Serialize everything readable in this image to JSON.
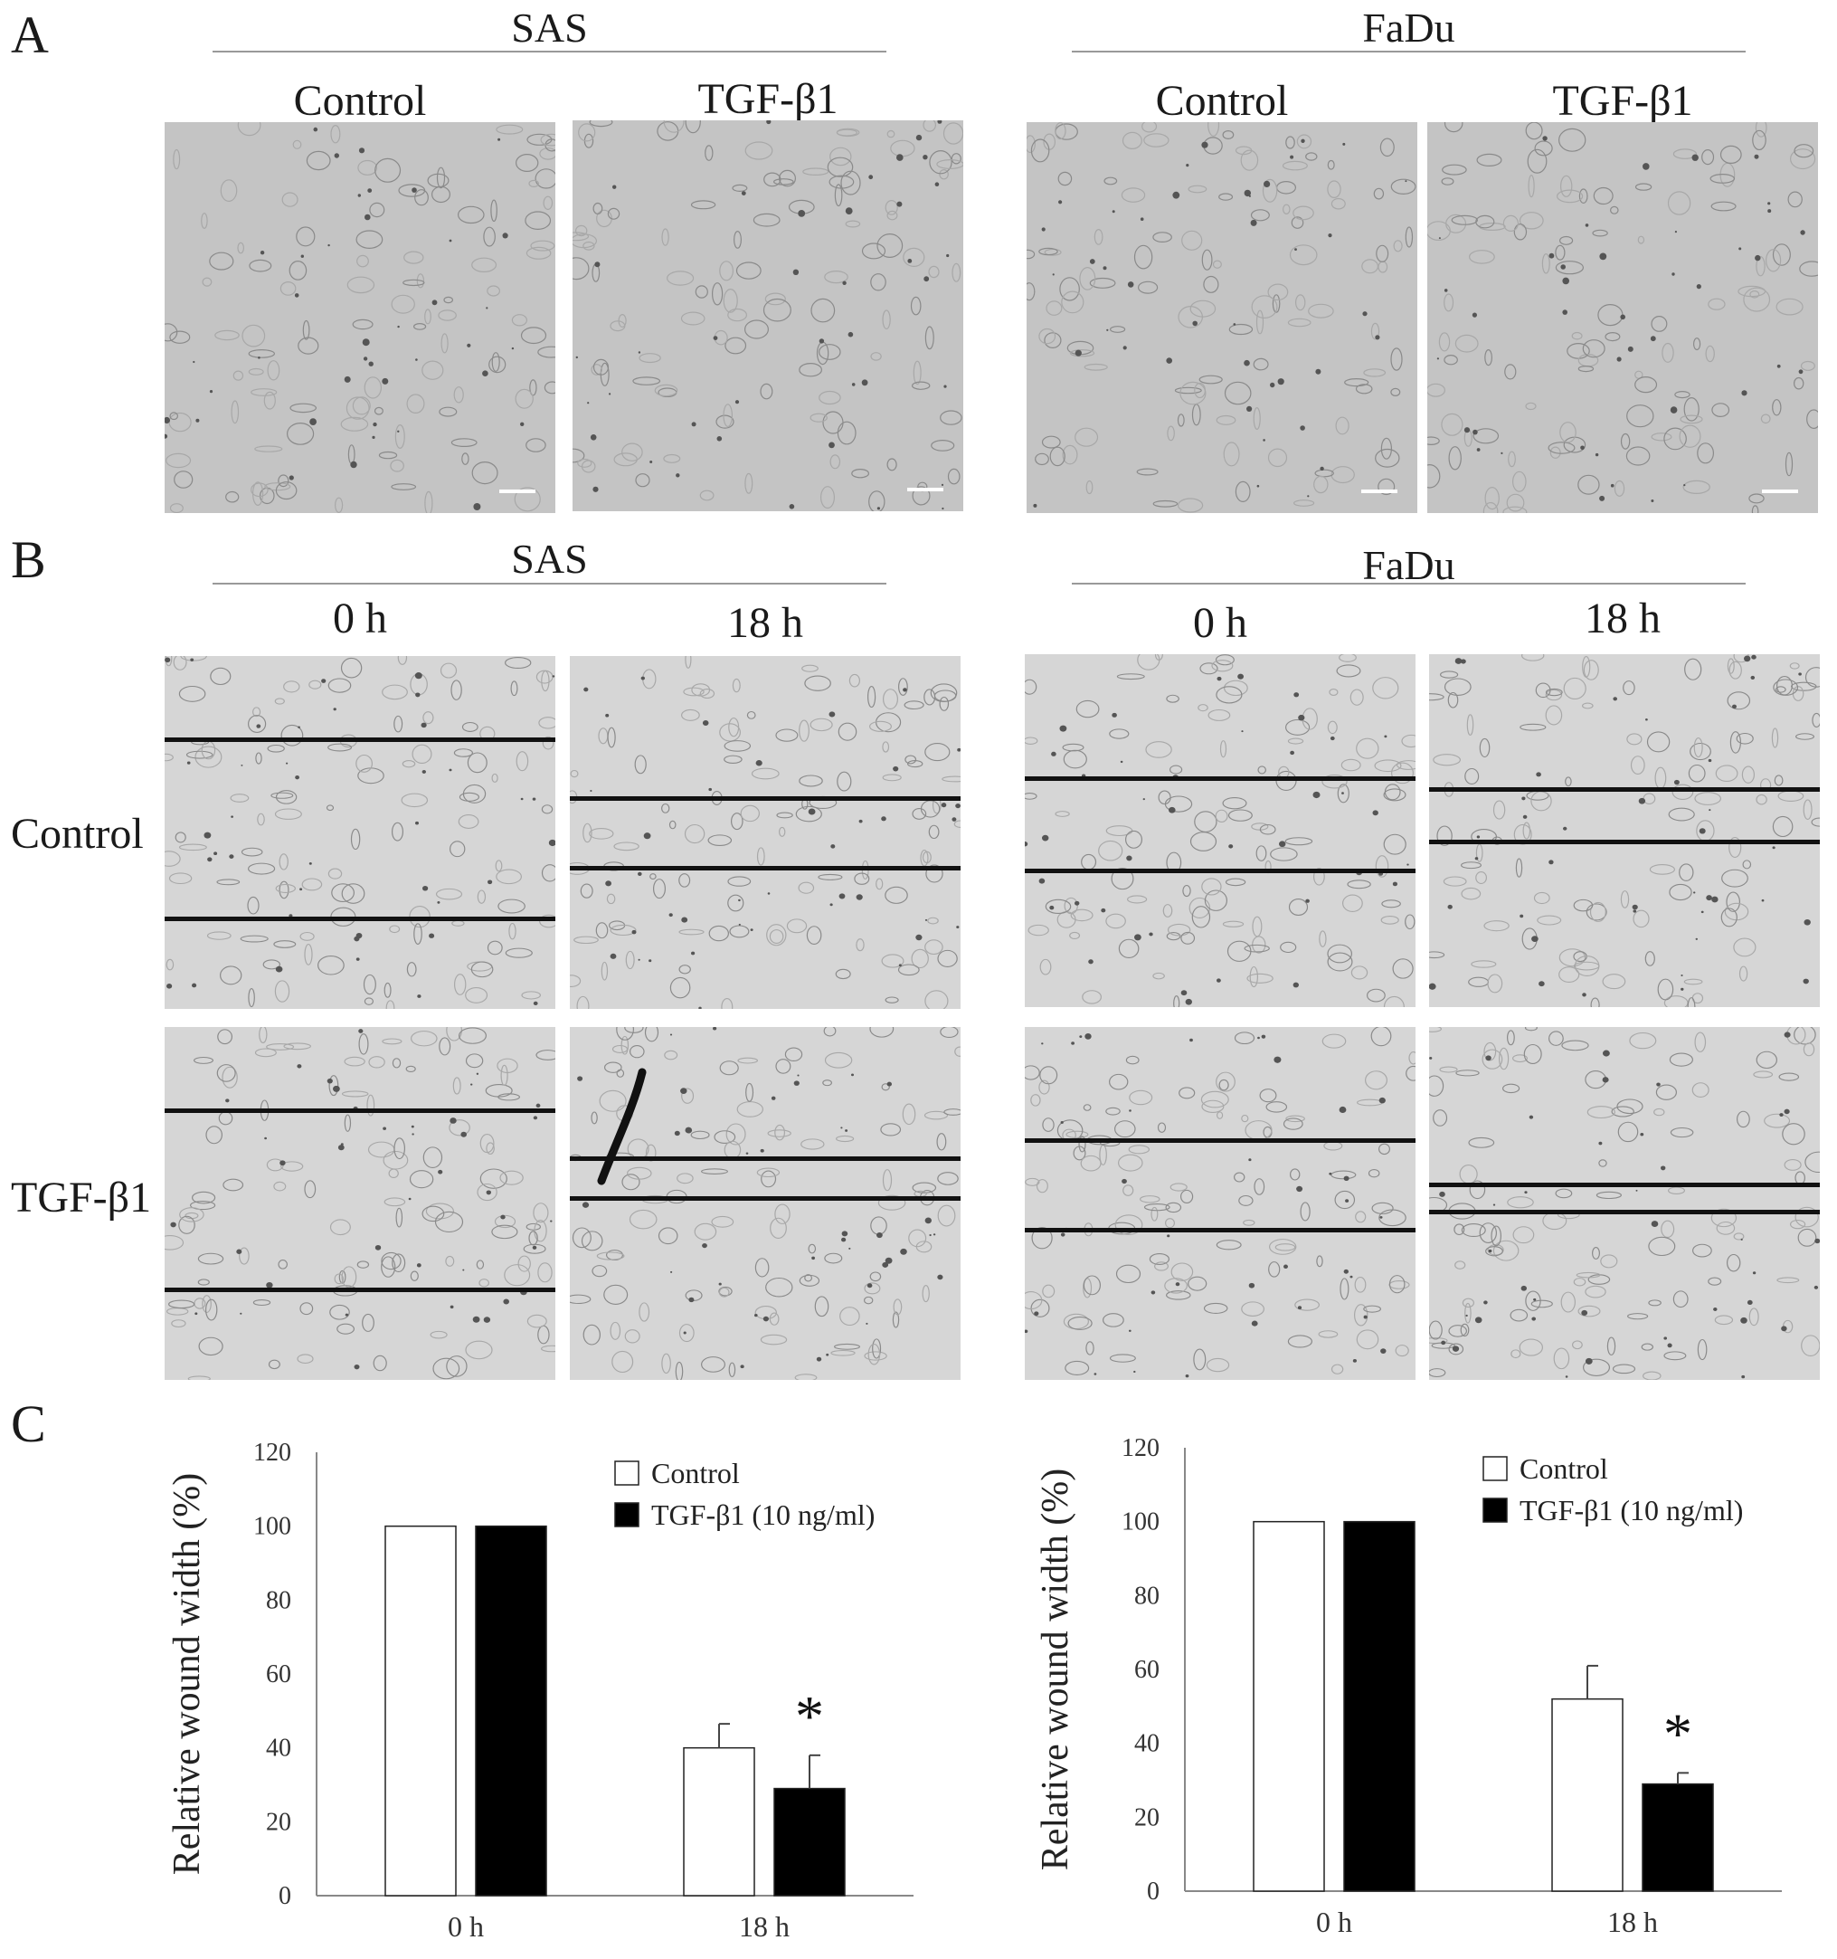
{
  "figure": {
    "panel_a": {
      "letter": "A",
      "groups": [
        {
          "title": "SAS",
          "columns": [
            "Control",
            "TGF-β1"
          ]
        },
        {
          "title": "FaDu",
          "columns": [
            "Control",
            "TGF-β1"
          ]
        }
      ]
    },
    "panel_b": {
      "letter": "B",
      "groups": [
        {
          "title": "SAS",
          "columns": [
            "0 h",
            "18 h"
          ]
        },
        {
          "title": "FaDu",
          "columns": [
            "0 h",
            "18 h"
          ]
        }
      ],
      "rows": [
        "Control",
        "TGF-β1"
      ]
    },
    "panel_c": {
      "letter": "C"
    }
  },
  "chart_data": [
    {
      "type": "bar",
      "title": "",
      "ylabel": "Relative wound width (%)",
      "xlabel": "",
      "ylim": [
        0,
        120
      ],
      "yticks": [
        "0",
        "20",
        "40",
        "60",
        "80",
        "100",
        "120"
      ],
      "categories": [
        "0 h",
        "18 h"
      ],
      "series": [
        {
          "name": "Control",
          "color": "#ffffff",
          "values": [
            100,
            40
          ],
          "errors": [
            0,
            6.5
          ]
        },
        {
          "name": "TGF-β1 (10 ng/ml)",
          "color": "#000000",
          "values": [
            100,
            29
          ],
          "errors": [
            0,
            9
          ]
        }
      ],
      "annotation": "*",
      "legend_position": "top-right"
    },
    {
      "type": "bar",
      "title": "",
      "ylabel": "Relative wound width (%)",
      "xlabel": "",
      "ylim": [
        0,
        120
      ],
      "yticks": [
        "0",
        "20",
        "40",
        "60",
        "80",
        "100",
        "120"
      ],
      "categories": [
        "0 h",
        "18 h"
      ],
      "series": [
        {
          "name": "Control",
          "color": "#ffffff",
          "values": [
            100,
            52
          ],
          "errors": [
            0,
            9
          ]
        },
        {
          "name": "TGF-β1 (10 ng/ml)",
          "color": "#000000",
          "values": [
            100,
            29
          ],
          "errors": [
            0,
            3
          ]
        }
      ],
      "annotation": "*",
      "legend_position": "top-right"
    }
  ]
}
